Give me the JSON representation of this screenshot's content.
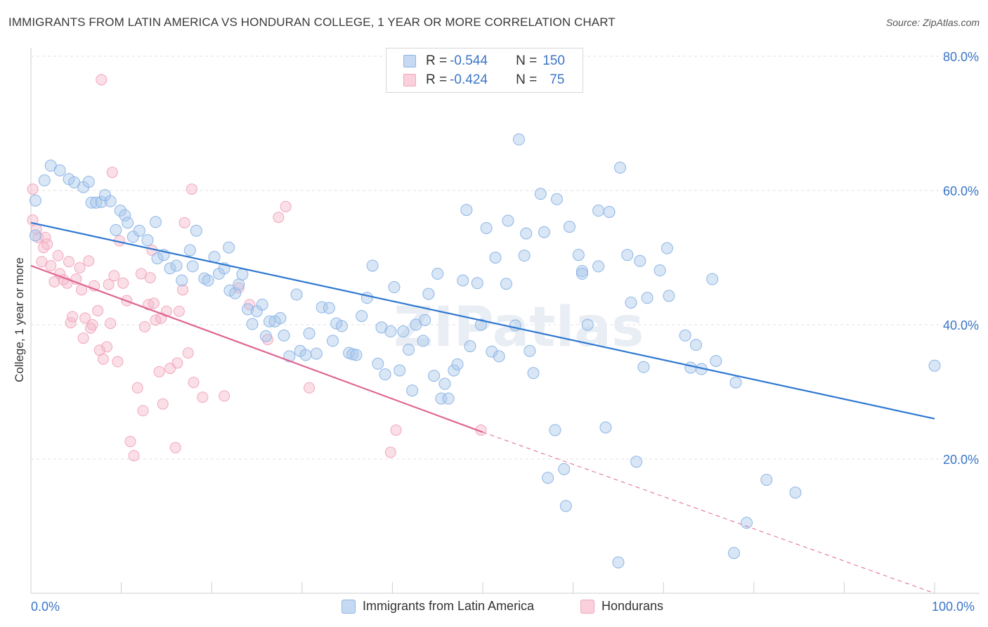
{
  "header": {
    "title": "IMMIGRANTS FROM LATIN AMERICA VS HONDURAN COLLEGE, 1 YEAR OR MORE CORRELATION CHART",
    "source": "Source: ZipAtlas.com"
  },
  "watermark": "ZIPatlas",
  "legend": {
    "rows": [
      {
        "r_label": "R = ",
        "r_value": "-0.544",
        "n_label": "N = ",
        "n_value": "150",
        "color": "#a9c7ec"
      },
      {
        "r_label": "R = ",
        "r_value": "-0.424",
        "n_label": "N = ",
        "n_value": "75",
        "color": "#f5b7c9"
      }
    ]
  },
  "bottom_legend": {
    "blue": "Immigrants from Latin America",
    "pink": "Hondurans"
  },
  "chart_data": {
    "type": "scatter",
    "title": "IMMIGRANTS FROM LATIN AMERICA VS HONDURAN COLLEGE, 1 YEAR OR MORE CORRELATION CHART",
    "xlabel": "",
    "ylabel": "College, 1 year or more",
    "xlim": [
      0,
      100
    ],
    "ylim": [
      0,
      80
    ],
    "x_tick_labels": [
      "0.0%",
      "100.0%"
    ],
    "y_ticks": [
      20,
      40,
      60,
      80
    ],
    "y_tick_labels": [
      "20.0%",
      "40.0%",
      "60.0%",
      "80.0%"
    ],
    "grid": true,
    "colors": {
      "blue": "#8fb6e6",
      "pink": "#f2a7bf",
      "blue_line": "#2f78d0",
      "pink_line": "#e06592"
    },
    "series": [
      {
        "name": "Immigrants from Latin America",
        "r": -0.544,
        "n": 150,
        "trend": {
          "x0": 0,
          "y0": 55.2,
          "x1": 100,
          "y1": 26.0
        },
        "points": [
          [
            0.5,
            58.5
          ],
          [
            0.5,
            53.3
          ],
          [
            1.5,
            61.5
          ],
          [
            2.2,
            63.7
          ],
          [
            3.2,
            63.0
          ],
          [
            4.2,
            61.7
          ],
          [
            4.8,
            61.2
          ],
          [
            5.8,
            60.5
          ],
          [
            6.4,
            61.3
          ],
          [
            6.7,
            58.2
          ],
          [
            7.2,
            58.2
          ],
          [
            7.8,
            58.3
          ],
          [
            8.2,
            59.3
          ],
          [
            8.8,
            58.4
          ],
          [
            9.4,
            54.1
          ],
          [
            9.9,
            57.0
          ],
          [
            10.4,
            56.3
          ],
          [
            10.7,
            55.2
          ],
          [
            11.3,
            53.1
          ],
          [
            12.0,
            54.0
          ],
          [
            12.9,
            52.6
          ],
          [
            13.8,
            55.3
          ],
          [
            14.0,
            49.9
          ],
          [
            14.7,
            50.4
          ],
          [
            15.4,
            48.4
          ],
          [
            16.1,
            48.8
          ],
          [
            16.7,
            46.6
          ],
          [
            17.6,
            51.1
          ],
          [
            17.9,
            48.7
          ],
          [
            18.3,
            54.0
          ],
          [
            19.2,
            46.9
          ],
          [
            19.6,
            46.6
          ],
          [
            20.3,
            50.1
          ],
          [
            20.8,
            47.6
          ],
          [
            21.4,
            48.4
          ],
          [
            21.9,
            51.5
          ],
          [
            22.0,
            45.1
          ],
          [
            22.6,
            44.7
          ],
          [
            23.0,
            46.0
          ],
          [
            23.4,
            47.5
          ],
          [
            24.0,
            42.3
          ],
          [
            24.5,
            40.1
          ],
          [
            25.0,
            42.0
          ],
          [
            25.6,
            43.0
          ],
          [
            26.0,
            38.3
          ],
          [
            26.4,
            40.5
          ],
          [
            27.0,
            40.5
          ],
          [
            27.6,
            41.0
          ],
          [
            28.0,
            38.4
          ],
          [
            28.6,
            35.3
          ],
          [
            29.4,
            44.5
          ],
          [
            29.8,
            36.1
          ],
          [
            30.4,
            35.5
          ],
          [
            30.8,
            38.7
          ],
          [
            31.6,
            35.7
          ],
          [
            32.2,
            42.6
          ],
          [
            33.0,
            42.5
          ],
          [
            33.4,
            37.6
          ],
          [
            33.8,
            40.2
          ],
          [
            34.4,
            39.8
          ],
          [
            35.2,
            35.8
          ],
          [
            35.6,
            35.6
          ],
          [
            36.0,
            35.5
          ],
          [
            36.6,
            41.3
          ],
          [
            37.2,
            44.0
          ],
          [
            37.8,
            48.8
          ],
          [
            38.4,
            34.2
          ],
          [
            38.8,
            39.6
          ],
          [
            39.2,
            32.6
          ],
          [
            39.8,
            39.0
          ],
          [
            40.2,
            45.6
          ],
          [
            40.8,
            33.2
          ],
          [
            41.2,
            39.0
          ],
          [
            41.8,
            36.3
          ],
          [
            42.2,
            30.2
          ],
          [
            42.6,
            40.0
          ],
          [
            43.4,
            37.6
          ],
          [
            43.6,
            40.7
          ],
          [
            44.0,
            44.6
          ],
          [
            44.6,
            32.4
          ],
          [
            45.0,
            47.6
          ],
          [
            45.4,
            29.0
          ],
          [
            45.8,
            31.2
          ],
          [
            46.2,
            29.0
          ],
          [
            46.8,
            33.2
          ],
          [
            47.2,
            34.1
          ],
          [
            47.8,
            46.6
          ],
          [
            48.2,
            57.1
          ],
          [
            48.6,
            36.8
          ],
          [
            49.4,
            46.2
          ],
          [
            49.8,
            40.0
          ],
          [
            50.4,
            54.4
          ],
          [
            51.0,
            36.0
          ],
          [
            51.4,
            50.0
          ],
          [
            51.8,
            35.3
          ],
          [
            52.6,
            46.1
          ],
          [
            52.8,
            55.5
          ],
          [
            53.6,
            39.9
          ],
          [
            54.0,
            67.6
          ],
          [
            54.6,
            50.3
          ],
          [
            54.8,
            53.6
          ],
          [
            55.2,
            36.1
          ],
          [
            55.6,
            32.8
          ],
          [
            56.4,
            59.5
          ],
          [
            56.8,
            53.8
          ],
          [
            57.2,
            17.2
          ],
          [
            58.0,
            24.3
          ],
          [
            58.2,
            58.7
          ],
          [
            59.0,
            18.5
          ],
          [
            59.2,
            13.0
          ],
          [
            59.6,
            54.6
          ],
          [
            60.6,
            50.4
          ],
          [
            61.0,
            48.0
          ],
          [
            61.0,
            47.6
          ],
          [
            61.6,
            40.0
          ],
          [
            62.8,
            48.7
          ],
          [
            62.8,
            57.0
          ],
          [
            63.6,
            24.7
          ],
          [
            64.0,
            56.8
          ],
          [
            65.2,
            63.4
          ],
          [
            65.0,
            4.6
          ],
          [
            66.0,
            50.4
          ],
          [
            66.4,
            43.3
          ],
          [
            67.0,
            19.6
          ],
          [
            67.4,
            49.5
          ],
          [
            67.8,
            33.7
          ],
          [
            68.2,
            44.0
          ],
          [
            69.6,
            48.1
          ],
          [
            70.4,
            51.4
          ],
          [
            70.6,
            44.3
          ],
          [
            72.4,
            38.4
          ],
          [
            73.0,
            33.6
          ],
          [
            73.6,
            37.0
          ],
          [
            74.2,
            33.4
          ],
          [
            75.4,
            46.8
          ],
          [
            75.8,
            34.6
          ],
          [
            77.8,
            6.0
          ],
          [
            78.0,
            31.4
          ],
          [
            79.2,
            10.5
          ],
          [
            81.4,
            16.9
          ],
          [
            84.6,
            15.0
          ],
          [
            100.0,
            33.9
          ]
        ]
      },
      {
        "name": "Hondurans",
        "r": -0.424,
        "n": 75,
        "trend": {
          "x0": 0,
          "y0": 48.8,
          "x1": 50,
          "y1": 24.0,
          "dash_to": [
            100,
            0
          ]
        },
        "points": [
          [
            0.2,
            60.2
          ],
          [
            0.2,
            55.6
          ],
          [
            0.6,
            54.2
          ],
          [
            0.8,
            53.0
          ],
          [
            1.2,
            49.4
          ],
          [
            1.4,
            51.5
          ],
          [
            1.6,
            53.0
          ],
          [
            1.8,
            52.0
          ],
          [
            2.2,
            48.8
          ],
          [
            2.6,
            46.4
          ],
          [
            3.0,
            50.3
          ],
          [
            3.2,
            47.6
          ],
          [
            3.6,
            46.7
          ],
          [
            4.0,
            46.2
          ],
          [
            4.2,
            49.4
          ],
          [
            4.4,
            40.3
          ],
          [
            4.6,
            41.2
          ],
          [
            5.0,
            46.8
          ],
          [
            5.4,
            48.5
          ],
          [
            5.6,
            45.2
          ],
          [
            5.8,
            38.0
          ],
          [
            6.0,
            41.0
          ],
          [
            6.4,
            49.5
          ],
          [
            6.6,
            39.5
          ],
          [
            6.8,
            40.0
          ],
          [
            7.0,
            45.8
          ],
          [
            7.4,
            42.1
          ],
          [
            7.6,
            36.2
          ],
          [
            7.8,
            76.5
          ],
          [
            8.0,
            34.9
          ],
          [
            8.4,
            36.7
          ],
          [
            8.6,
            46.0
          ],
          [
            8.8,
            40.2
          ],
          [
            9.0,
            62.7
          ],
          [
            9.2,
            47.3
          ],
          [
            9.6,
            34.5
          ],
          [
            9.8,
            52.5
          ],
          [
            10.2,
            46.2
          ],
          [
            10.6,
            43.6
          ],
          [
            11.0,
            22.6
          ],
          [
            11.4,
            20.5
          ],
          [
            11.8,
            30.6
          ],
          [
            12.2,
            47.6
          ],
          [
            12.4,
            27.2
          ],
          [
            12.6,
            39.7
          ],
          [
            13.0,
            43.0
          ],
          [
            13.2,
            47.0
          ],
          [
            13.4,
            51.1
          ],
          [
            13.6,
            43.2
          ],
          [
            13.8,
            40.7
          ],
          [
            14.2,
            33.0
          ],
          [
            14.4,
            41.0
          ],
          [
            14.6,
            28.2
          ],
          [
            15.0,
            42.0
          ],
          [
            15.4,
            33.5
          ],
          [
            16.0,
            21.7
          ],
          [
            16.2,
            34.3
          ],
          [
            16.4,
            42.0
          ],
          [
            16.8,
            45.2
          ],
          [
            17.0,
            55.2
          ],
          [
            17.4,
            35.8
          ],
          [
            17.8,
            60.2
          ],
          [
            18.0,
            31.4
          ],
          [
            19.0,
            29.2
          ],
          [
            21.4,
            29.4
          ],
          [
            23.0,
            45.5
          ],
          [
            24.2,
            43.0
          ],
          [
            26.2,
            37.8
          ],
          [
            27.4,
            56.0
          ],
          [
            28.2,
            57.6
          ],
          [
            30.8,
            30.6
          ],
          [
            39.8,
            21.0
          ],
          [
            40.4,
            24.3
          ],
          [
            49.8,
            24.3
          ]
        ]
      }
    ]
  }
}
